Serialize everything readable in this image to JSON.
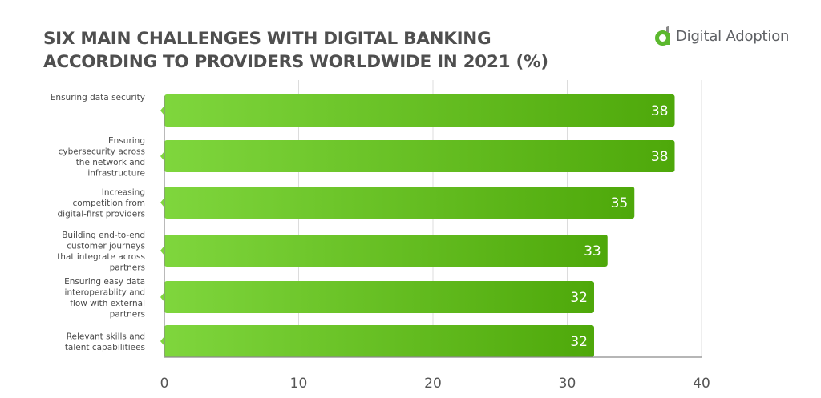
{
  "header": {
    "title_line1": "SIX MAIN CHALLENGES WITH DIGITAL BANKING",
    "title_line2": "ACCORDING TO PROVIDERS WORLDWIDE IN 2021 (%)"
  },
  "logo": {
    "icon": "digital-adoption-logo-icon",
    "text": "Digital Adoption",
    "brand_green": "#5cb82e",
    "brand_gray": "#8a8a8a"
  },
  "chart_data": {
    "type": "bar",
    "orientation": "horizontal",
    "title": "SIX MAIN CHALLENGES WITH DIGITAL BANKING ACCORDING TO PROVIDERS WORLDWIDE IN 2021 (%)",
    "xlabel": "",
    "ylabel": "",
    "categories": [
      [
        "Ensuring data security"
      ],
      [
        "Ensuring",
        "cybersecurity across",
        "the network and",
        "infrastructure"
      ],
      [
        "Increasing",
        "competition from",
        "digital-first providers"
      ],
      [
        "Building end-to-end",
        "customer journeys",
        "that integrate across",
        "partners"
      ],
      [
        "Ensuring easy data",
        "interoperablity and",
        "flow with external",
        "partners"
      ],
      [
        "Relevant skills and",
        "talent capabilitiees"
      ]
    ],
    "values": [
      38,
      38,
      35,
      33,
      32,
      32
    ],
    "xlim": [
      0,
      40
    ],
    "xticks": [
      "0",
      "10",
      "20",
      "30",
      "40"
    ],
    "tick_values": [
      0,
      10,
      20,
      30,
      40
    ],
    "grid": true,
    "legend": "none",
    "bar_color_start": "#7fd63d",
    "bar_color_end": "#4ea80a"
  }
}
